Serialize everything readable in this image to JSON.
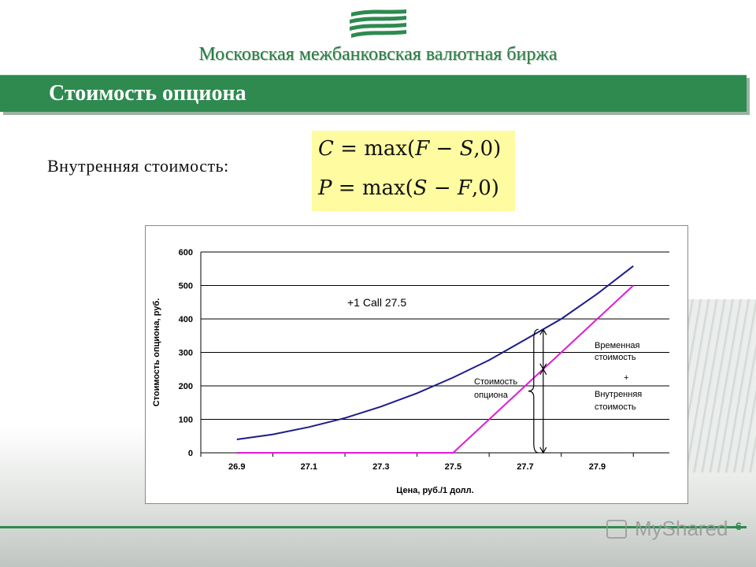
{
  "header": {
    "exchange_name": "Московская межбанковская валютная биржа",
    "title": "Стоимость опциона"
  },
  "intrinsic": {
    "label": "Внутренняя стоимость:",
    "call_formula": {
      "lhs": "C",
      "eq": " = max(",
      "a": "F",
      "minus": " − ",
      "b": "S",
      "tail": ",0)"
    },
    "put_formula": {
      "lhs": "P",
      "eq": " = max(",
      "a": "S",
      "minus": " − ",
      "b": "F",
      "tail": ",0)"
    }
  },
  "colors": {
    "brand_green": "#2e8a4f",
    "formula_bg": "#fffba0",
    "option_value_line": "#1c1c8c",
    "intrinsic_line": "#e01ad6"
  },
  "chart_data": {
    "type": "line",
    "xlabel": "Цена, руб./1 долл.",
    "ylabel": "Стоимость опциона, руб.",
    "x_ticks": [
      "26.9",
      "27.1",
      "27.3",
      "27.5",
      "27.7",
      "27.9"
    ],
    "y_ticks": [
      "0",
      "100",
      "200",
      "300",
      "400",
      "500",
      "600"
    ],
    "xlim": [
      26.8,
      28.1
    ],
    "ylim": [
      0,
      600
    ],
    "grid": "horizontal",
    "annotation_label": "+1 Call 27.5",
    "series": [
      {
        "color": "#1c1c8c",
        "x": [
          26.9,
          27.0,
          27.1,
          27.2,
          27.3,
          27.4,
          27.5,
          27.6,
          27.7,
          27.8,
          27.9,
          28.0
        ],
        "y": [
          40,
          55,
          77,
          104,
          138,
          178,
          225,
          277,
          338,
          400,
          475,
          558
        ]
      },
      {
        "color": "#e01ad6",
        "x": [
          26.9,
          27.5,
          28.0
        ],
        "y": [
          0,
          0,
          500
        ]
      }
    ],
    "annotations": {
      "option_value": "Стоимость опциона",
      "time_value_line1": "Временная",
      "time_value_line2": "стоимость",
      "plus": "+",
      "intrinsic_value_line1": "Внутренняя",
      "intrinsic_value_line2": "стоимость"
    },
    "marker_x": 27.75
  },
  "footer": {
    "page_number": "6",
    "watermark": "MyShared"
  }
}
